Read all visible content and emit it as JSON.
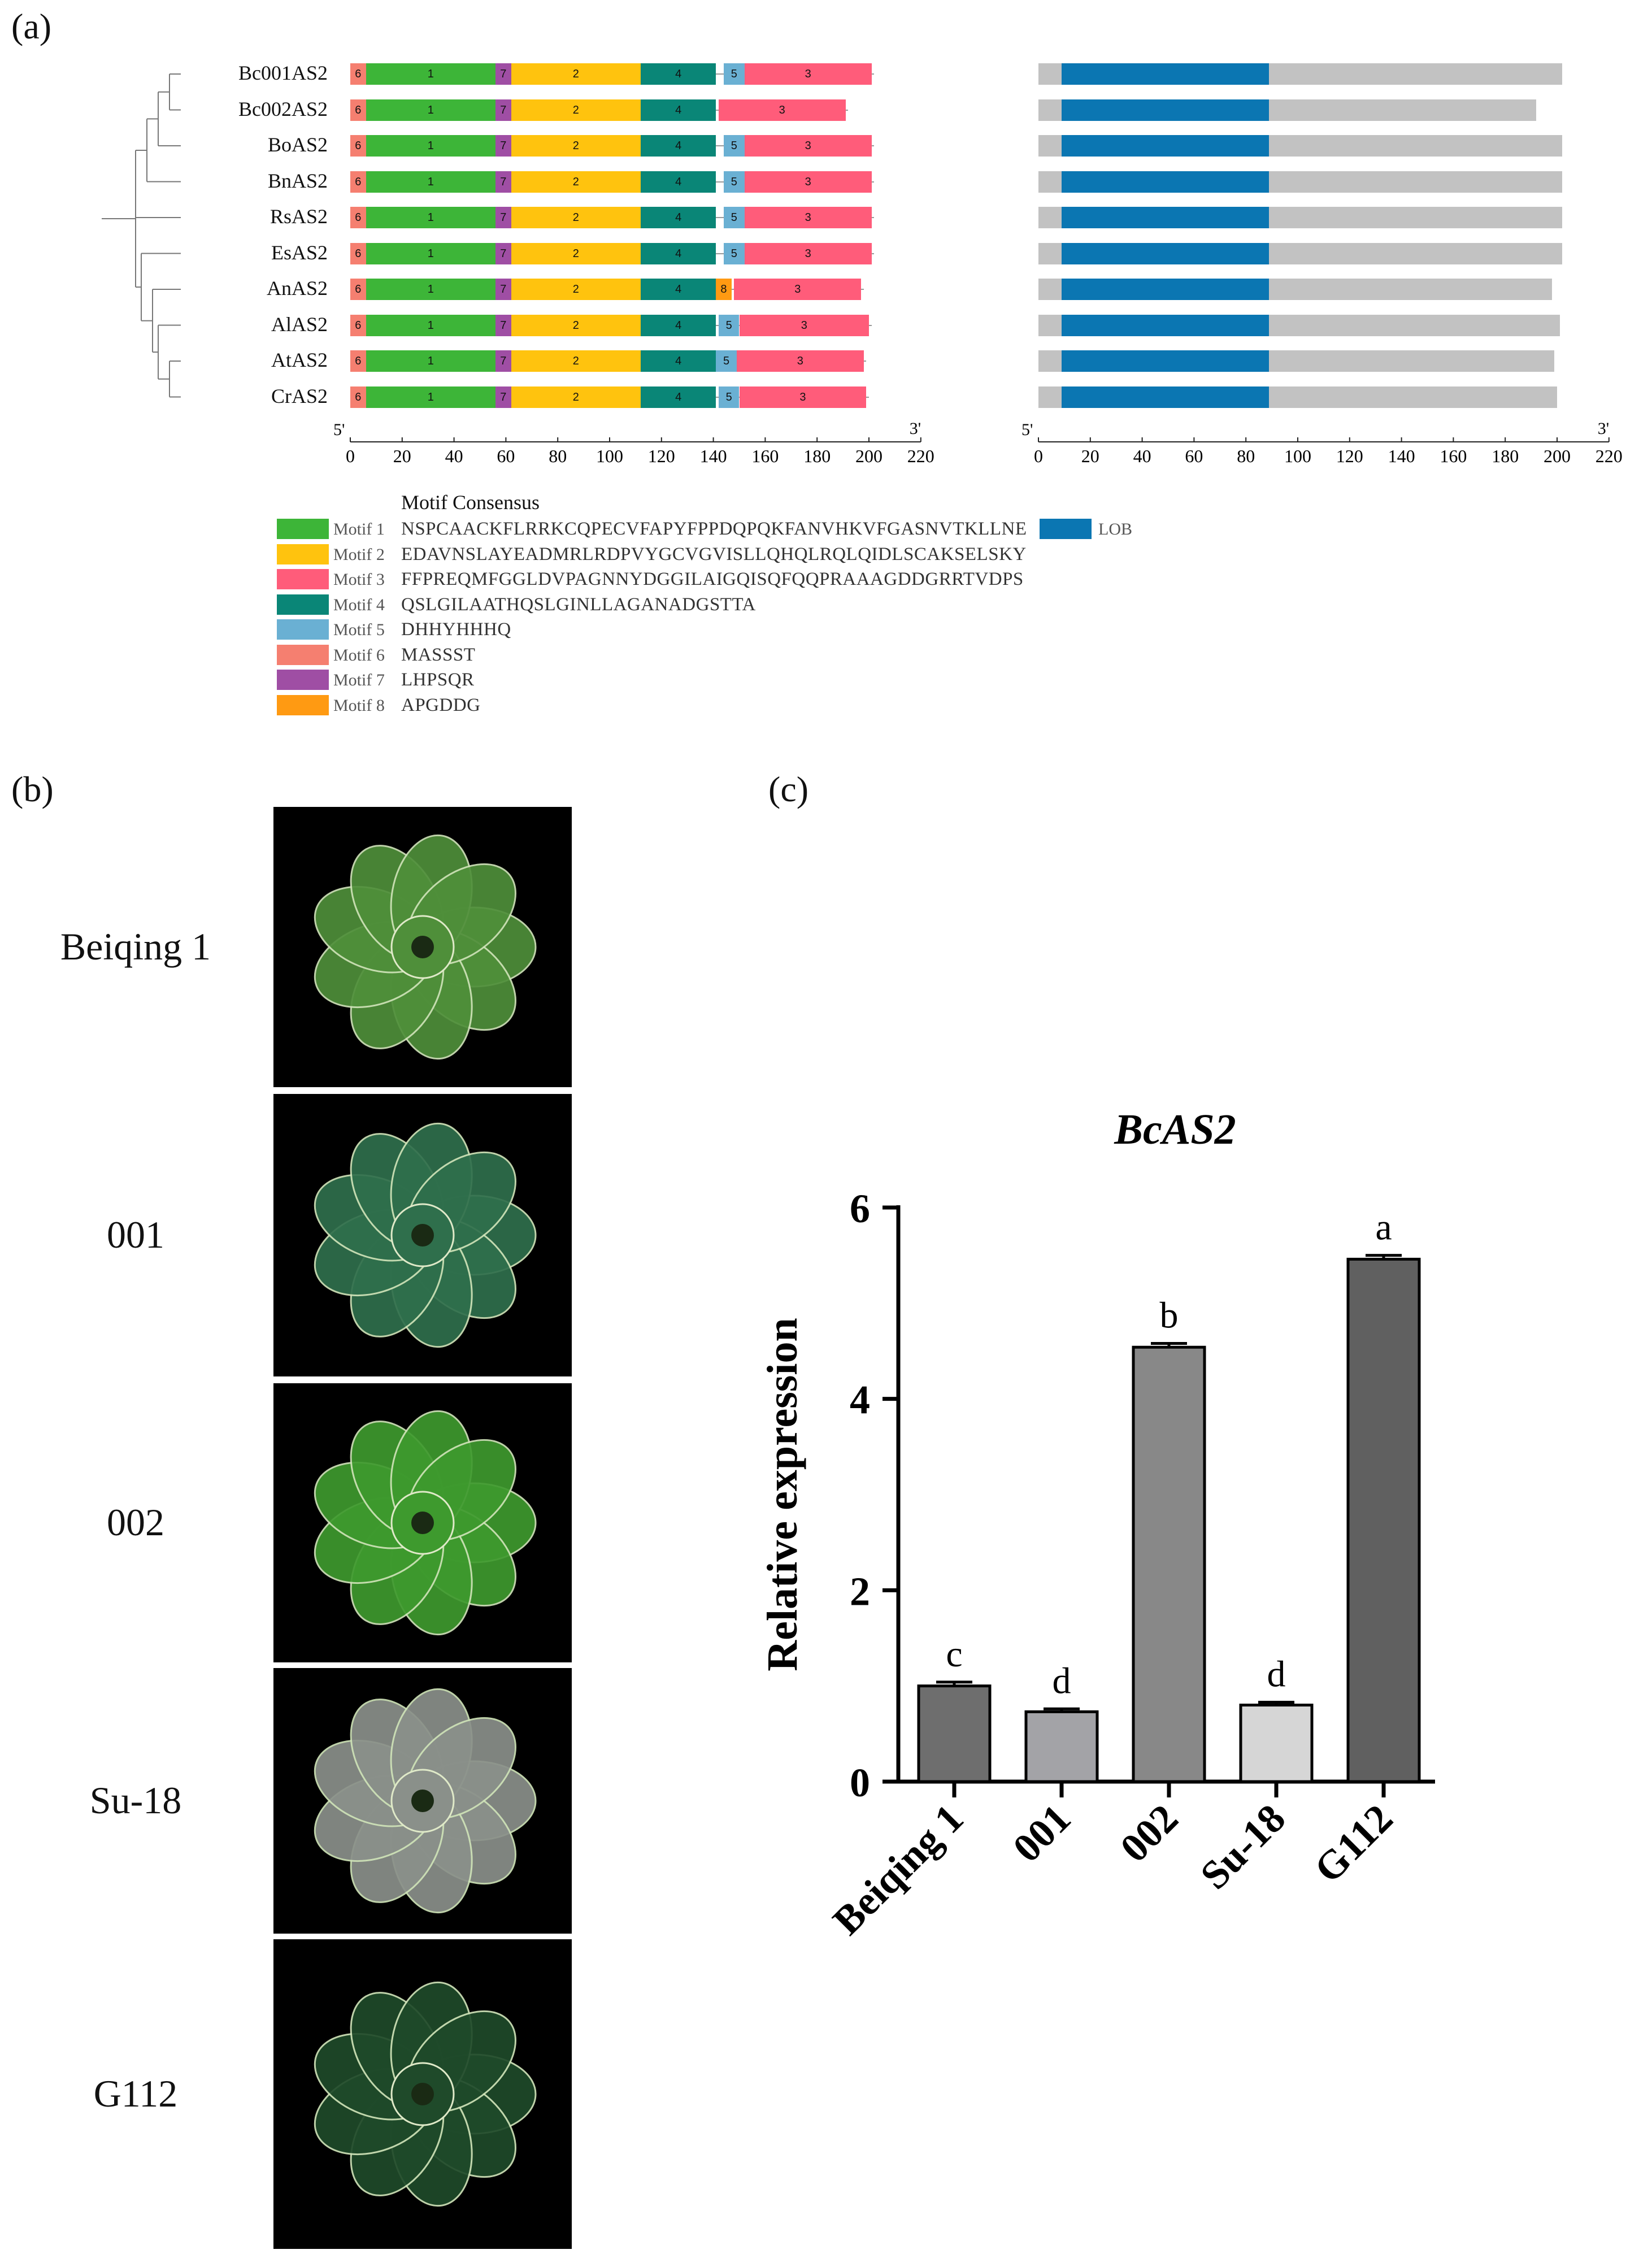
{
  "panels": {
    "a": "(a)",
    "b": "(b)",
    "c": "(c)"
  },
  "motif_diagram": {
    "sequences": [
      {
        "name": "Bc001AS2",
        "motifs": [
          {
            "id": "6",
            "start": 0,
            "end": 6
          },
          {
            "id": "1",
            "start": 6,
            "end": 56
          },
          {
            "id": "7",
            "start": 56,
            "end": 62
          },
          {
            "id": "2",
            "start": 62,
            "end": 112
          },
          {
            "id": "4",
            "start": 112,
            "end": 141
          },
          {
            "id": "5",
            "start": 144,
            "end": 152
          },
          {
            "id": "3",
            "start": 152,
            "end": 201
          }
        ],
        "length": 202
      },
      {
        "name": "Bc002AS2",
        "motifs": [
          {
            "id": "6",
            "start": 0,
            "end": 6
          },
          {
            "id": "1",
            "start": 6,
            "end": 56
          },
          {
            "id": "7",
            "start": 56,
            "end": 62
          },
          {
            "id": "2",
            "start": 62,
            "end": 112
          },
          {
            "id": "4",
            "start": 112,
            "end": 141
          },
          {
            "id": "3",
            "start": 142,
            "end": 191
          }
        ],
        "length": 192
      },
      {
        "name": "BoAS2",
        "motifs": [
          {
            "id": "6",
            "start": 0,
            "end": 6
          },
          {
            "id": "1",
            "start": 6,
            "end": 56
          },
          {
            "id": "7",
            "start": 56,
            "end": 62
          },
          {
            "id": "2",
            "start": 62,
            "end": 112
          },
          {
            "id": "4",
            "start": 112,
            "end": 141
          },
          {
            "id": "5",
            "start": 144,
            "end": 152
          },
          {
            "id": "3",
            "start": 152,
            "end": 201
          }
        ],
        "length": 202
      },
      {
        "name": "BnAS2",
        "motifs": [
          {
            "id": "6",
            "start": 0,
            "end": 6
          },
          {
            "id": "1",
            "start": 6,
            "end": 56
          },
          {
            "id": "7",
            "start": 56,
            "end": 62
          },
          {
            "id": "2",
            "start": 62,
            "end": 112
          },
          {
            "id": "4",
            "start": 112,
            "end": 141
          },
          {
            "id": "5",
            "start": 144,
            "end": 152
          },
          {
            "id": "3",
            "start": 152,
            "end": 201
          }
        ],
        "length": 202
      },
      {
        "name": "RsAS2",
        "motifs": [
          {
            "id": "6",
            "start": 0,
            "end": 6
          },
          {
            "id": "1",
            "start": 6,
            "end": 56
          },
          {
            "id": "7",
            "start": 56,
            "end": 62
          },
          {
            "id": "2",
            "start": 62,
            "end": 112
          },
          {
            "id": "4",
            "start": 112,
            "end": 141
          },
          {
            "id": "5",
            "start": 144,
            "end": 152
          },
          {
            "id": "3",
            "start": 152,
            "end": 201
          }
        ],
        "length": 202
      },
      {
        "name": "EsAS2",
        "motifs": [
          {
            "id": "6",
            "start": 0,
            "end": 6
          },
          {
            "id": "1",
            "start": 6,
            "end": 56
          },
          {
            "id": "7",
            "start": 56,
            "end": 62
          },
          {
            "id": "2",
            "start": 62,
            "end": 112
          },
          {
            "id": "4",
            "start": 112,
            "end": 141
          },
          {
            "id": "5",
            "start": 144,
            "end": 152
          },
          {
            "id": "3",
            "start": 152,
            "end": 201
          }
        ],
        "length": 202
      },
      {
        "name": "AnAS2",
        "motifs": [
          {
            "id": "6",
            "start": 0,
            "end": 6
          },
          {
            "id": "1",
            "start": 6,
            "end": 56
          },
          {
            "id": "7",
            "start": 56,
            "end": 62
          },
          {
            "id": "2",
            "start": 62,
            "end": 112
          },
          {
            "id": "4",
            "start": 112,
            "end": 141
          },
          {
            "id": "8",
            "start": 141,
            "end": 147
          },
          {
            "id": "3",
            "start": 148,
            "end": 197
          }
        ],
        "length": 198
      },
      {
        "name": "AlAS2",
        "motifs": [
          {
            "id": "6",
            "start": 0,
            "end": 6
          },
          {
            "id": "1",
            "start": 6,
            "end": 56
          },
          {
            "id": "7",
            "start": 56,
            "end": 62
          },
          {
            "id": "2",
            "start": 62,
            "end": 112
          },
          {
            "id": "4",
            "start": 112,
            "end": 141
          },
          {
            "id": "5",
            "start": 142,
            "end": 150
          },
          {
            "id": "3",
            "start": 150,
            "end": 200
          }
        ],
        "length": 201
      },
      {
        "name": "AtAS2",
        "motifs": [
          {
            "id": "6",
            "start": 0,
            "end": 6
          },
          {
            "id": "1",
            "start": 6,
            "end": 56
          },
          {
            "id": "7",
            "start": 56,
            "end": 62
          },
          {
            "id": "2",
            "start": 62,
            "end": 112
          },
          {
            "id": "4",
            "start": 112,
            "end": 141
          },
          {
            "id": "5",
            "start": 141,
            "end": 149
          },
          {
            "id": "3",
            "start": 149,
            "end": 198
          }
        ],
        "length": 199
      },
      {
        "name": "CrAS2",
        "motifs": [
          {
            "id": "6",
            "start": 0,
            "end": 6
          },
          {
            "id": "1",
            "start": 6,
            "end": 56
          },
          {
            "id": "7",
            "start": 56,
            "end": 62
          },
          {
            "id": "2",
            "start": 62,
            "end": 112
          },
          {
            "id": "4",
            "start": 112,
            "end": 141
          },
          {
            "id": "5",
            "start": 142,
            "end": 150
          },
          {
            "id": "3",
            "start": 150,
            "end": 199
          }
        ],
        "length": 200
      }
    ],
    "lob_domain": {
      "start": 9,
      "end": 89
    },
    "domain_lengths": [
      202,
      192,
      202,
      202,
      202,
      202,
      198,
      201,
      199,
      200
    ],
    "axis_ticks": [
      "0",
      "20",
      "40",
      "60",
      "80",
      "100",
      "120",
      "140",
      "160",
      "180",
      "200",
      "220"
    ],
    "axis_max": 220,
    "five_prime": "5'",
    "three_prime": "3'",
    "motif_colors": {
      "1": "#3db538",
      "2": "#ffc30e",
      "3": "#ff5c7a",
      "4": "#0a8677",
      "5": "#6ab0d3",
      "6": "#f57f70",
      "7": "#9f4ea4",
      "8": "#ff9a12"
    },
    "lob_color": "#0b76b2",
    "bar_color": "#c2c2c2"
  },
  "legend": {
    "title": "Motif Consensus",
    "items": [
      {
        "label": "Motif 1",
        "seq": "NSPCAACKFLRRKCQPECVFAPYFPPDQPQKFANVHKVFGASNVTKLLNE",
        "color": "#3db538"
      },
      {
        "label": "Motif 2",
        "seq": "EDAVNSLAYEADMRLRDPVYGCVGVISLLQHQLRQLQIDLSCAKSELSKY",
        "color": "#ffc30e"
      },
      {
        "label": "Motif 3",
        "seq": "FFPREQMFGGLDVPAGNNYDGGILAIGQISQFQQPRAAAGDDGRRTVDPS",
        "color": "#ff5c7a"
      },
      {
        "label": "Motif 4",
        "seq": "QSLGILAATHQSLGINLLAGANADGSTTA",
        "color": "#0a8677"
      },
      {
        "label": "Motif 5",
        "seq": "DHHYHHHQ",
        "color": "#6ab0d3"
      },
      {
        "label": "Motif 6",
        "seq": "MASSST",
        "color": "#f57f70"
      },
      {
        "label": "Motif 7",
        "seq": "LHPSQR",
        "color": "#9f4ea4"
      },
      {
        "label": "Motif 8",
        "seq": "APGDDG",
        "color": "#ff9a12"
      }
    ],
    "lob_label": "LOB"
  },
  "photos": [
    {
      "label": "Beiqing 1",
      "icon": "bok-choy-photo",
      "tone": "#4f8f3a"
    },
    {
      "label": "001",
      "icon": "bok-choy-photo",
      "tone": "#2f6f4c"
    },
    {
      "label": "002",
      "icon": "bok-choy-photo",
      "tone": "#3e9a2e"
    },
    {
      "label": "Su-18",
      "icon": "bok-choy-photo",
      "tone": "#8a908a"
    },
    {
      "label": "G112",
      "icon": "bok-choy-photo",
      "tone": "#1f4a2a"
    }
  ],
  "chart_data": {
    "type": "bar",
    "title": "BcAS2",
    "ylabel": "Relative expression",
    "xlabel": "",
    "categories": [
      "Beiqing 1",
      "001",
      "002",
      "Su-18",
      "G112"
    ],
    "values": [
      1.0,
      0.73,
      4.54,
      0.8,
      5.46
    ],
    "errors": [
      0.04,
      0.03,
      0.04,
      0.03,
      0.04
    ],
    "significance": [
      "c",
      "d",
      "b",
      "d",
      "a"
    ],
    "bar_colors": [
      "#6e6e6e",
      "#a3a3a7",
      "#888888",
      "#d6d6d6",
      "#606060"
    ],
    "ylim": [
      0,
      6
    ],
    "yticks": [
      "0",
      "2",
      "4",
      "6"
    ],
    "grid": false
  }
}
